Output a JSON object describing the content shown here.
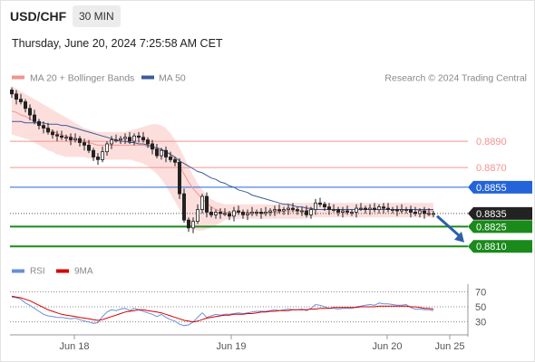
{
  "header": {
    "symbol": "USD/CHF",
    "interval": "30 MIN",
    "datetime": "Thursday, June 20, 2024 7:25:58 AM CET"
  },
  "legend": {
    "ma20": "MA 20 + Bollinger Bands",
    "ma50": "MA 50",
    "credit": "Research © 2024 Trading Central"
  },
  "colors": {
    "ma20": "#f4938e",
    "ma50": "#3b5b9b",
    "bollinger_fill": "#fbd9d7",
    "resistance": "#f4938e",
    "current_level": "#2464d8",
    "support": "#1a8a1a",
    "last_price": "#222222",
    "rsi": "#6a8fd8",
    "rsi_ma": "#d40000",
    "up_candle": "#ffffff",
    "down_candle": "#222222",
    "arrow": "#2f5fa8"
  },
  "chart_data": [
    {
      "type": "candlestick",
      "title": "",
      "x_ticks": [
        "Jun 18",
        "Jun 19",
        "Jun 20",
        "Jun 25"
      ],
      "ylim": [
        0.8806,
        0.8897
      ],
      "levels": [
        {
          "label": "0.8890",
          "value": 0.889,
          "kind": "resistance"
        },
        {
          "label": "0.8870",
          "value": 0.887,
          "kind": "resistance"
        },
        {
          "label": "0.8855",
          "value": 0.8855,
          "kind": "key-level"
        },
        {
          "label": "0.8835",
          "value": 0.8835,
          "kind": "last-price"
        },
        {
          "label": "0.8825",
          "value": 0.8825,
          "kind": "support"
        },
        {
          "label": "0.8810",
          "value": 0.881,
          "kind": "support"
        }
      ],
      "close": [
        0.8926,
        0.8922,
        0.892,
        0.8915,
        0.891,
        0.8905,
        0.8902,
        0.89,
        0.8897,
        0.8895,
        0.8894,
        0.8893,
        0.8893,
        0.8891,
        0.8892,
        0.8889,
        0.8887,
        0.8883,
        0.8878,
        0.8876,
        0.8882,
        0.8888,
        0.8891,
        0.8891,
        0.8892,
        0.8893,
        0.889,
        0.8894,
        0.8893,
        0.8891,
        0.8888,
        0.8884,
        0.8879,
        0.8883,
        0.8878,
        0.8876,
        0.8874,
        0.885,
        0.883,
        0.8824,
        0.8829,
        0.8838,
        0.8848,
        0.8836,
        0.8834,
        0.8836,
        0.8835,
        0.8835,
        0.8833,
        0.8837,
        0.8836,
        0.8834,
        0.8835,
        0.8836,
        0.8836,
        0.8835,
        0.8836,
        0.8837,
        0.8838,
        0.8837,
        0.8838,
        0.8839,
        0.8838,
        0.8837,
        0.8837,
        0.8834,
        0.8838,
        0.8843,
        0.8842,
        0.884,
        0.8838,
        0.8838,
        0.8836,
        0.8837,
        0.8836,
        0.8836,
        0.8839,
        0.8839,
        0.8838,
        0.8839,
        0.8838,
        0.884,
        0.8839,
        0.8838,
        0.8838,
        0.8837,
        0.8838,
        0.8838,
        0.8836,
        0.8835,
        0.8837,
        0.8835,
        0.8835,
        0.8835
      ],
      "ma20": [
        0.8913,
        0.8912,
        0.891,
        0.8909,
        0.8907,
        0.8905,
        0.8903,
        0.8901,
        0.8899,
        0.8898,
        0.8896,
        0.8895,
        0.8894,
        0.8893,
        0.8892,
        0.8891,
        0.889,
        0.8889,
        0.8888,
        0.8887,
        0.8887,
        0.8887,
        0.8887,
        0.8887,
        0.8887,
        0.8887,
        0.8887,
        0.8887,
        0.8887,
        0.8887,
        0.8886,
        0.8885,
        0.8884,
        0.8883,
        0.8882,
        0.888,
        0.8876,
        0.8871,
        0.8865,
        0.8859,
        0.8854,
        0.885,
        0.8846,
        0.8843,
        0.884,
        0.8838,
        0.8837,
        0.8836,
        0.8836,
        0.8836,
        0.8836,
        0.8836,
        0.8836,
        0.8836,
        0.8836,
        0.8836,
        0.8836,
        0.8836,
        0.8836,
        0.8836,
        0.8837,
        0.8837,
        0.8837,
        0.8837,
        0.8837,
        0.8837,
        0.8838,
        0.8838,
        0.8838,
        0.8838,
        0.8838,
        0.8838,
        0.8838,
        0.8838,
        0.8838,
        0.8838,
        0.8838,
        0.8838,
        0.8838,
        0.8838,
        0.8838,
        0.8838,
        0.8838,
        0.8838,
        0.8838,
        0.8838,
        0.8838,
        0.8838,
        0.8838,
        0.8838,
        0.8837,
        0.8837,
        0.8837,
        0.8837
      ],
      "bollinger_upper": [
        0.8932,
        0.893,
        0.8928,
        0.8926,
        0.8924,
        0.8922,
        0.892,
        0.8918,
        0.8916,
        0.8914,
        0.8912,
        0.891,
        0.8908,
        0.8906,
        0.8904,
        0.8902,
        0.89,
        0.8899,
        0.8898,
        0.8897,
        0.8897,
        0.8897,
        0.8897,
        0.8897,
        0.8897,
        0.8897,
        0.8898,
        0.8899,
        0.89,
        0.8901,
        0.8902,
        0.8903,
        0.8903,
        0.8902,
        0.89,
        0.8896,
        0.8891,
        0.8885,
        0.8878,
        0.8871,
        0.8864,
        0.8858,
        0.8853,
        0.8849,
        0.8846,
        0.8844,
        0.8843,
        0.8842,
        0.8842,
        0.8842,
        0.8842,
        0.8842,
        0.8842,
        0.8842,
        0.8842,
        0.8842,
        0.8842,
        0.8842,
        0.8842,
        0.8842,
        0.8843,
        0.8843,
        0.8843,
        0.8843,
        0.8843,
        0.8843,
        0.8843,
        0.8843,
        0.8843,
        0.8843,
        0.8843,
        0.8843,
        0.8843,
        0.8843,
        0.8843,
        0.8843,
        0.8843,
        0.8843,
        0.8843,
        0.8843,
        0.8843,
        0.8843,
        0.8843,
        0.8843,
        0.8843,
        0.8843,
        0.8843,
        0.8843,
        0.8843,
        0.8843,
        0.8843,
        0.8843,
        0.8843,
        0.8843
      ],
      "bollinger_lower": [
        0.8895,
        0.8894,
        0.8893,
        0.8892,
        0.8891,
        0.8889,
        0.8887,
        0.8885,
        0.8883,
        0.8882,
        0.888,
        0.8879,
        0.8878,
        0.8878,
        0.8878,
        0.8878,
        0.8878,
        0.8877,
        0.8876,
        0.8876,
        0.8876,
        0.8876,
        0.8876,
        0.8876,
        0.8876,
        0.8876,
        0.8876,
        0.8875,
        0.8874,
        0.8873,
        0.8871,
        0.8868,
        0.8865,
        0.8861,
        0.8856,
        0.885,
        0.8844,
        0.8838,
        0.8832,
        0.8826,
        0.8823,
        0.8822,
        0.8822,
        0.8823,
        0.8824,
        0.8826,
        0.8828,
        0.883,
        0.8831,
        0.8831,
        0.8831,
        0.8831,
        0.8831,
        0.8831,
        0.8831,
        0.8831,
        0.8831,
        0.8831,
        0.8831,
        0.8831,
        0.8831,
        0.8831,
        0.8831,
        0.8831,
        0.8831,
        0.8831,
        0.8832,
        0.8832,
        0.8832,
        0.8832,
        0.8832,
        0.8832,
        0.8832,
        0.8832,
        0.8832,
        0.8832,
        0.8832,
        0.8832,
        0.8832,
        0.8832,
        0.8832,
        0.8832,
        0.8832,
        0.8832,
        0.8832,
        0.8832,
        0.8832,
        0.8832,
        0.8832,
        0.8832,
        0.8832,
        0.8832,
        0.8832,
        0.8832
      ],
      "ma50": [
        0.8905,
        0.8905,
        0.8905,
        0.8904,
        0.8904,
        0.8904,
        0.8904,
        0.8904,
        0.8903,
        0.8903,
        0.8903,
        0.8902,
        0.8902,
        0.8901,
        0.89,
        0.8899,
        0.8898,
        0.8897,
        0.8896,
        0.8895,
        0.8894,
        0.8893,
        0.8892,
        0.8891,
        0.889,
        0.889,
        0.8889,
        0.8889,
        0.8888,
        0.8888,
        0.8887,
        0.8886,
        0.8885,
        0.8884,
        0.8882,
        0.888,
        0.8878,
        0.8875,
        0.8873,
        0.8871,
        0.8869,
        0.8867,
        0.8866,
        0.8864,
        0.8862,
        0.8861,
        0.8859,
        0.8858,
        0.8856,
        0.8855,
        0.8853,
        0.8852,
        0.8851,
        0.8849,
        0.8848,
        0.8847,
        0.8846,
        0.8845,
        0.8844,
        0.8843,
        0.8842,
        0.8842,
        0.8841,
        0.884,
        0.884,
        0.8839,
        0.8839,
        0.8838,
        0.8838,
        0.8838,
        0.8838,
        0.8838,
        0.8838,
        0.8838,
        0.8838,
        0.8838,
        0.8838,
        0.8838,
        0.8838,
        0.8838,
        0.8838,
        0.8838,
        0.8838,
        0.8838,
        0.8838,
        0.8838,
        0.8838,
        0.8838,
        0.8838,
        0.8838,
        0.8838,
        0.8838,
        0.8838,
        0.8838
      ],
      "forecast_arrow": {
        "from": 0.8833,
        "to": 0.8813
      }
    },
    {
      "type": "line",
      "title": "",
      "legend": [
        "RSI",
        "9MA"
      ],
      "y_ticks": [
        "70",
        "50",
        "30"
      ],
      "ylim": [
        20,
        80
      ],
      "series": [
        {
          "name": "RSI",
          "values": [
            63,
            62,
            60,
            55,
            52,
            48,
            44,
            40,
            38,
            37,
            36,
            36,
            35,
            34,
            35,
            33,
            31,
            30,
            28,
            29,
            37,
            43,
            46,
            45,
            47,
            48,
            45,
            48,
            46,
            44,
            42,
            40,
            37,
            40,
            36,
            33,
            31,
            27,
            25,
            26,
            30,
            36,
            42,
            36,
            38,
            40,
            39,
            40,
            40,
            41,
            42,
            41,
            42,
            43,
            44,
            44,
            44,
            45,
            46,
            45,
            46,
            47,
            46,
            46,
            47,
            45,
            48,
            53,
            52,
            50,
            48,
            48,
            47,
            48,
            48,
            48,
            50,
            51,
            52,
            53,
            52,
            55,
            54,
            54,
            53,
            52,
            52,
            53,
            49,
            47,
            47,
            46,
            46,
            45
          ]
        },
        {
          "name": "9MA",
          "values": [
            64,
            63,
            62,
            60,
            58,
            55,
            52,
            49,
            46,
            44,
            42,
            40,
            39,
            38,
            37,
            36,
            35,
            34,
            33,
            32,
            33,
            35,
            37,
            39,
            41,
            43,
            44,
            45,
            46,
            46,
            45,
            44,
            43,
            42,
            40,
            38,
            36,
            34,
            32,
            31,
            30,
            31,
            33,
            35,
            36,
            37,
            38,
            39,
            39,
            40,
            40,
            40,
            41,
            41,
            42,
            43,
            43,
            44,
            44,
            45,
            45,
            45,
            46,
            46,
            46,
            46,
            47,
            47,
            48,
            48,
            48,
            49,
            49,
            49,
            49,
            49,
            49,
            50,
            50,
            50,
            50,
            51,
            51,
            51,
            51,
            51,
            51,
            51,
            50,
            50,
            49,
            48,
            48,
            47
          ]
        }
      ]
    }
  ]
}
